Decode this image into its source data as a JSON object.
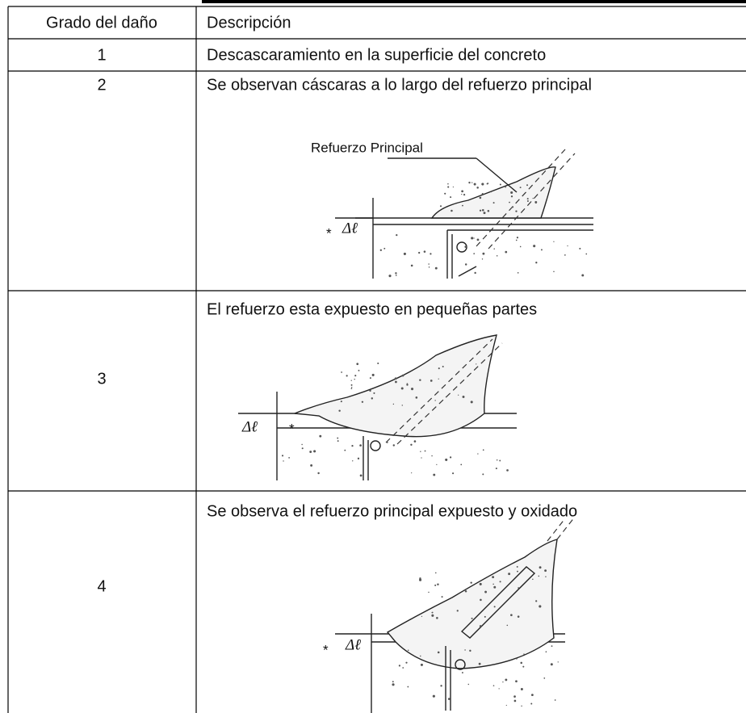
{
  "table": {
    "header": [
      "Grado del daño",
      "Descripción"
    ],
    "rows": [
      {
        "grade": "1",
        "description": "Descascaramiento en la superficie del concreto"
      },
      {
        "grade": "2",
        "description": "Se observan cáscaras a lo largo del refuerzo principal",
        "figure": {
          "label": "Refuerzo Principal",
          "marker": "*",
          "delta": "Δℓ"
        }
      },
      {
        "grade": "3",
        "description": "El refuerzo esta expuesto en pequeñas partes",
        "figure": {
          "marker": "*",
          "delta": "Δℓ"
        }
      },
      {
        "grade": "4",
        "description": "Se observa el refuerzo principal expuesto y oxidado",
        "figure": {
          "marker": "*",
          "delta": "Δℓ"
        }
      }
    ]
  }
}
